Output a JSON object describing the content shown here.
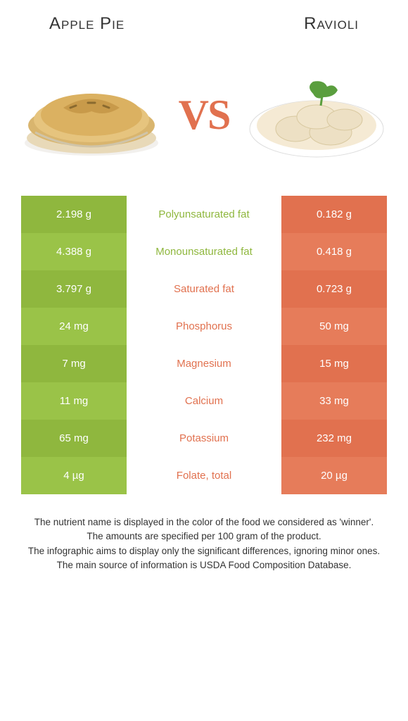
{
  "titles": {
    "left": "Apple Pie",
    "right": "Ravioli"
  },
  "vs": "VS",
  "colors": {
    "left_base": "#8fb73e",
    "left_alt": "#9ac348",
    "right_base": "#e1714f",
    "right_alt": "#e67c5a",
    "mid_left_text": "#8fb73e",
    "mid_right_text": "#e1714f"
  },
  "rows": [
    {
      "left": "2.198 g",
      "label": "Polyunsaturated fat",
      "right": "0.182 g",
      "winner": "left"
    },
    {
      "left": "4.388 g",
      "label": "Monounsaturated fat",
      "right": "0.418 g",
      "winner": "left"
    },
    {
      "left": "3.797 g",
      "label": "Saturated fat",
      "right": "0.723 g",
      "winner": "right"
    },
    {
      "left": "24 mg",
      "label": "Phosphorus",
      "right": "50 mg",
      "winner": "right"
    },
    {
      "left": "7 mg",
      "label": "Magnesium",
      "right": "15 mg",
      "winner": "right"
    },
    {
      "left": "11 mg",
      "label": "Calcium",
      "right": "33 mg",
      "winner": "right"
    },
    {
      "left": "65 mg",
      "label": "Potassium",
      "right": "232 mg",
      "winner": "right"
    },
    {
      "left": "4 µg",
      "label": "Folate, total",
      "right": "20 µg",
      "winner": "right"
    }
  ],
  "footer": {
    "line1": "The nutrient name is displayed in the color of the food we considered as 'winner'.",
    "line2": "The amounts are specified per 100 gram of the product.",
    "line3": "The infographic aims to display only the significant differences, ignoring minor ones.",
    "line4": "The main source of information is USDA Food Composition Database."
  }
}
